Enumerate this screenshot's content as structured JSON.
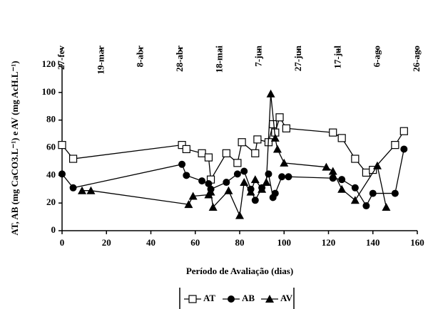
{
  "chart_data": {
    "type": "line",
    "xlabel": "Período de Avaliação (dias)",
    "ylabel": "AT, AB (mg CaCO3.L⁻¹) e AV (mg AcH.L⁻¹)",
    "xlim": [
      0,
      160
    ],
    "xticks": [
      0,
      20,
      40,
      60,
      80,
      100,
      120,
      140,
      160
    ],
    "ylim": [
      0,
      120
    ],
    "yticks": [
      0,
      20,
      40,
      60,
      80,
      100,
      120
    ],
    "x2ticks": [
      {
        "value": 0,
        "label": "27-fev"
      },
      {
        "value": 20,
        "label": "19-mar"
      },
      {
        "value": 40,
        "label": "8-abr"
      },
      {
        "value": 60,
        "label": "28-abr"
      },
      {
        "value": 80,
        "label": "18-mai"
      },
      {
        "value": 100,
        "label": "7-jun"
      },
      {
        "value": 120,
        "label": "27-jun"
      },
      {
        "value": 140,
        "label": "17-jul"
      },
      {
        "value": 160,
        "label": "6-ago"
      },
      {
        "value": 180,
        "label": "26-ago"
      }
    ],
    "legend": "bottom",
    "series": [
      {
        "name": "AT",
        "color": "#000000",
        "marker": "square-open",
        "x": [
          0,
          5,
          54,
          56,
          63,
          66,
          67,
          74,
          79,
          81,
          87,
          88,
          93,
          95,
          96,
          98,
          101,
          122,
          126,
          132,
          137,
          140,
          150,
          154
        ],
        "values": [
          62,
          52,
          62,
          59,
          56,
          53,
          37,
          56,
          49,
          64,
          56,
          66,
          64,
          77,
          71,
          82,
          74,
          71,
          67,
          52,
          42,
          44,
          62,
          72
        ]
      },
      {
        "name": "AB",
        "color": "#000000",
        "marker": "circle",
        "x": [
          0,
          5,
          54,
          56,
          63,
          66,
          67,
          74,
          79,
          82,
          85,
          87,
          90,
          93,
          95,
          96,
          99,
          102,
          122,
          126,
          132,
          137,
          140,
          150,
          154
        ],
        "values": [
          41,
          31,
          48,
          40,
          36,
          34,
          30,
          35,
          41,
          43,
          30,
          22,
          31,
          41,
          24,
          27,
          39,
          39,
          38,
          37,
          31,
          18,
          27,
          27,
          59
        ]
      },
      {
        "name": "AV",
        "color": "#000000",
        "marker": "triangle",
        "x": [
          9,
          13,
          57,
          59,
          66,
          67,
          68,
          75,
          80,
          82,
          85,
          87,
          90,
          92,
          94,
          96,
          97,
          100,
          119,
          122,
          126,
          132,
          142,
          146
        ],
        "values": [
          29,
          29,
          19,
          25,
          26,
          28,
          17,
          29,
          11,
          35,
          28,
          37,
          30,
          35,
          99,
          67,
          59,
          49,
          46,
          43,
          30,
          22,
          47,
          17
        ]
      }
    ]
  }
}
